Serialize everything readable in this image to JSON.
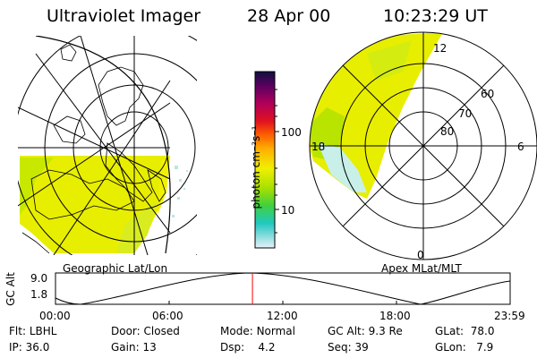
{
  "header": {
    "title": "Ultraviolet Imager",
    "date": "28 Apr 00",
    "time": "10:23:29 UT"
  },
  "left_panel": {
    "label": "Geographic Lat/Lon"
  },
  "colorbar": {
    "unit_label": "photon cm⁻²s⁻¹",
    "ticks": [
      "100",
      "10"
    ]
  },
  "right_panel": {
    "label": "Apex MLat/MLT",
    "mlt_labels": [
      "12",
      "18",
      "6",
      "0"
    ],
    "lat_labels": [
      "60",
      "70",
      "80"
    ]
  },
  "orbit_plot": {
    "ylabel": "GC Alt",
    "y_ticks": [
      "9.0",
      "1.8"
    ],
    "x_ticks": [
      "00:00",
      "06:00",
      "12:00",
      "18:00",
      "23:59"
    ],
    "current_time_hours": 10.39,
    "altitude_range_re": [
      1.8,
      9.0
    ]
  },
  "info_rows": [
    [
      {
        "label": "Flt:",
        "value": "LBHL"
      },
      {
        "label": "Door:",
        "value": "Closed"
      },
      {
        "label": "Mode:",
        "value": "Normal"
      },
      {
        "label": "GC Alt:",
        "value": "9.3 Re"
      },
      {
        "label": "GLat:",
        "value": "78.0"
      }
    ],
    [
      {
        "label": "IP:",
        "value": "36.0"
      },
      {
        "label": "Gain:",
        "value": "13"
      },
      {
        "label": "Dsp:",
        "value": "4.2"
      },
      {
        "label": "Seq:",
        "value": "39"
      },
      {
        "label": "GLon:",
        "value": "7.9"
      }
    ]
  ],
  "colors": {
    "emission_yellow": "#eef000",
    "emission_green": "#a8e000",
    "emission_cyan": "#40d0c0",
    "current_time_marker": "#ff0000"
  }
}
